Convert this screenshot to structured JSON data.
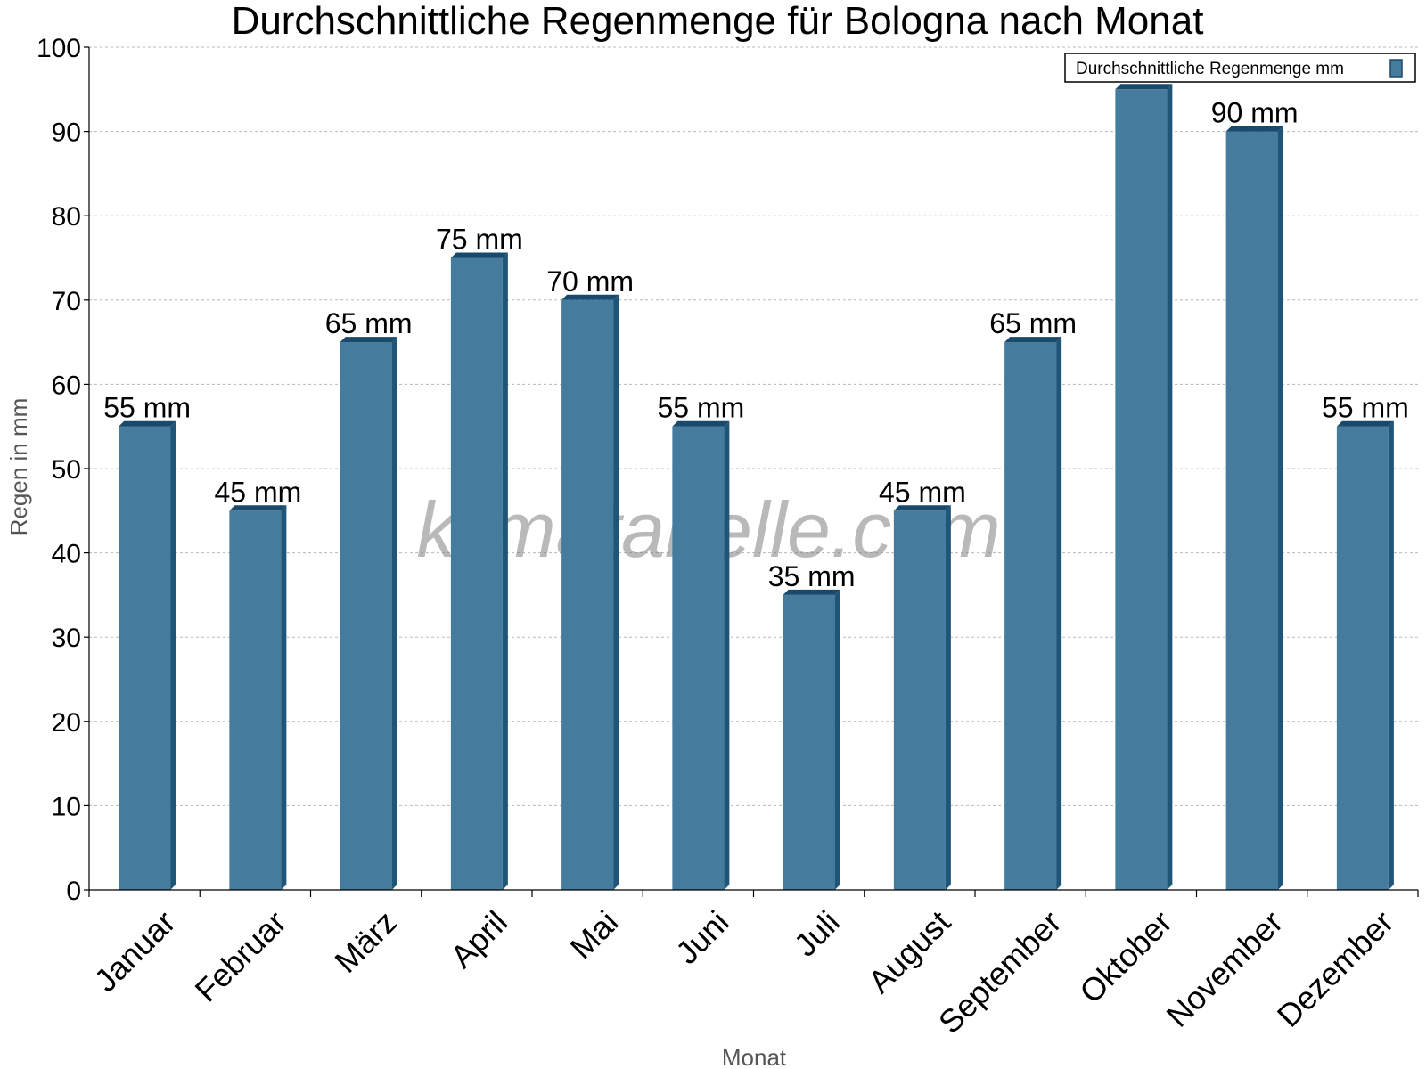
{
  "chart_data": {
    "type": "bar",
    "title": "Durchschnittliche Regenmenge für Bologna nach Monat",
    "xlabel": "Monat",
    "ylabel": "Regen in mm",
    "ylim": [
      0,
      100
    ],
    "yticks": [
      0,
      10,
      20,
      30,
      40,
      50,
      60,
      70,
      80,
      90,
      100
    ],
    "grid": true,
    "legend_position": "top-right",
    "categories": [
      "Januar",
      "Februar",
      "März",
      "April",
      "Mai",
      "Juni",
      "Juli",
      "August",
      "September",
      "Oktober",
      "November",
      "Dezember"
    ],
    "series": [
      {
        "name": "Durchschnittliche Regenmenge mm",
        "values": [
          55,
          45,
          65,
          75,
          70,
          55,
          35,
          45,
          65,
          95,
          90,
          55
        ],
        "color": "#457b9d"
      }
    ],
    "data_labels": [
      "55 mm",
      "45 mm",
      "65 mm",
      "75 mm",
      "70 mm",
      "55 mm",
      "35 mm",
      "45 mm",
      "65 mm",
      "",
      "90 mm",
      "55 mm"
    ],
    "watermark": "klimatabelle.com"
  }
}
